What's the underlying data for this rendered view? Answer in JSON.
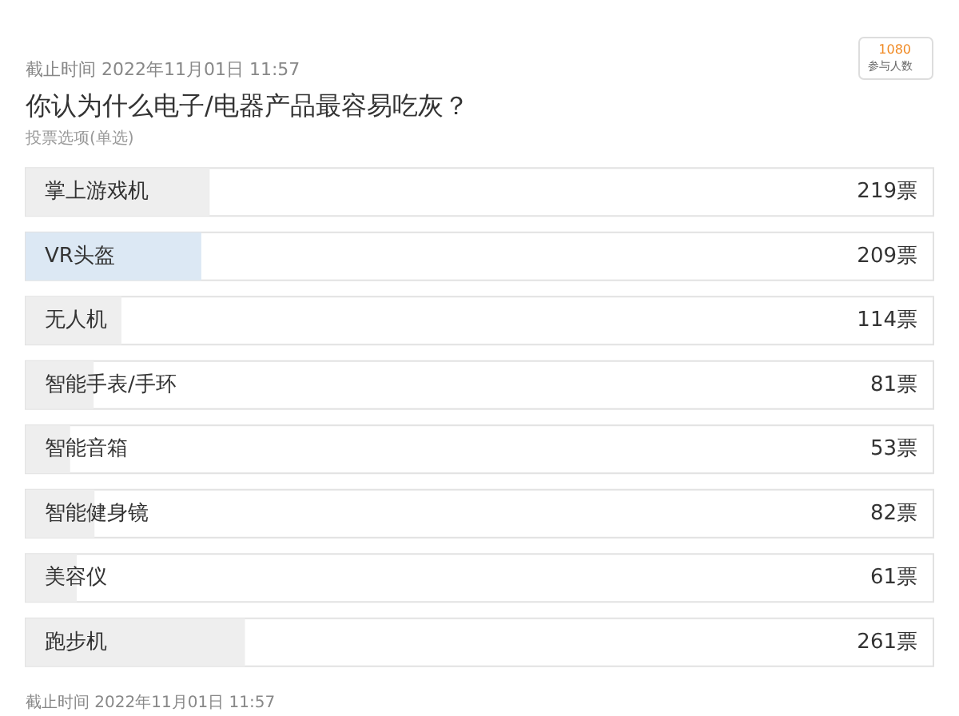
{
  "chart_data": {
    "type": "bar",
    "orientation": "horizontal",
    "title": "你认为什么电子/电器产品最容易吃灰？",
    "subtitle": "投票选项(单选)",
    "categories": [
      "掌上游戏机",
      "VR头盔",
      "无人机",
      "智能手表/手环",
      "智能音箱",
      "智能健身镜",
      "美容仪",
      "跑步机"
    ],
    "values": [
      219,
      209,
      114,
      81,
      53,
      82,
      61,
      261
    ],
    "value_labels": [
      "219票",
      "209票",
      "114票",
      "81票",
      "53票",
      "82票",
      "61票",
      "261票"
    ],
    "colors": [
      "#eeeeee",
      "#dce8f4",
      "#eeeeee",
      "#eeeeee",
      "#eeeeee",
      "#eeeeee",
      "#eeeeee",
      "#eeeeee"
    ],
    "annotations": [
      "截止时间 2022年11月01日 11:57",
      "1080",
      "参与人数",
      "截止时间 2022年11月01日 11:57"
    ],
    "grid": false
  }
}
